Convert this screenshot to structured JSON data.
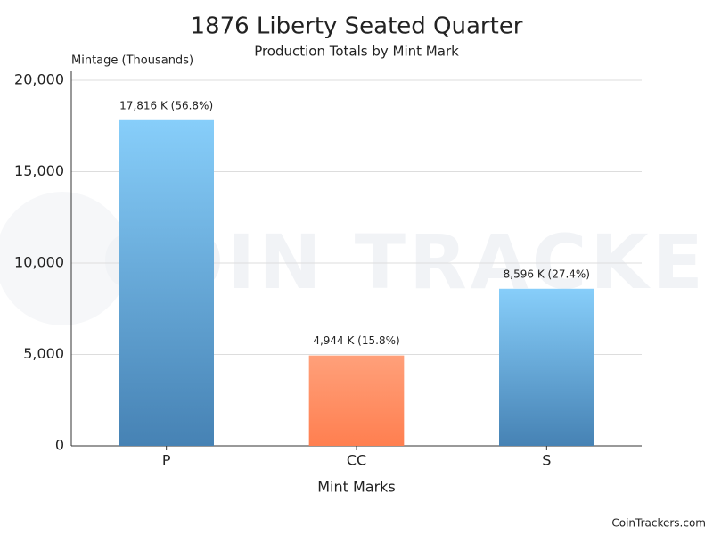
{
  "chart_data": {
    "type": "bar",
    "title": "1876 Liberty Seated Quarter",
    "subtitle": "Production Totals by Mint Mark",
    "y_axis_label": "Mintage (Thousands)",
    "x_axis_label": "Mint Marks",
    "watermark": "COIN TRACKERS",
    "credit": "CoinTrackers.com",
    "categories": [
      "P",
      "CC",
      "S"
    ],
    "values": [
      17816,
      4944,
      8596
    ],
    "value_labels": [
      "17,816 K (56.8%)",
      "4,944 K (15.8%)",
      "8,596 K (27.4%)"
    ],
    "colors": [
      [
        "#87cefa",
        "#4682b4"
      ],
      [
        "#ffa07a",
        "#ff7f50"
      ],
      [
        "#87cefa",
        "#4682b4"
      ]
    ],
    "ylim": [
      0,
      20000
    ],
    "yticks": [
      0,
      {
        "value": 5000,
        "label": "5,000"
      },
      {
        "value": 10000,
        "label": "10,000"
      },
      {
        "value": 15000,
        "label": "15,000"
      },
      {
        "value": 20000,
        "label": "20,000"
      }
    ],
    "grid": true
  }
}
